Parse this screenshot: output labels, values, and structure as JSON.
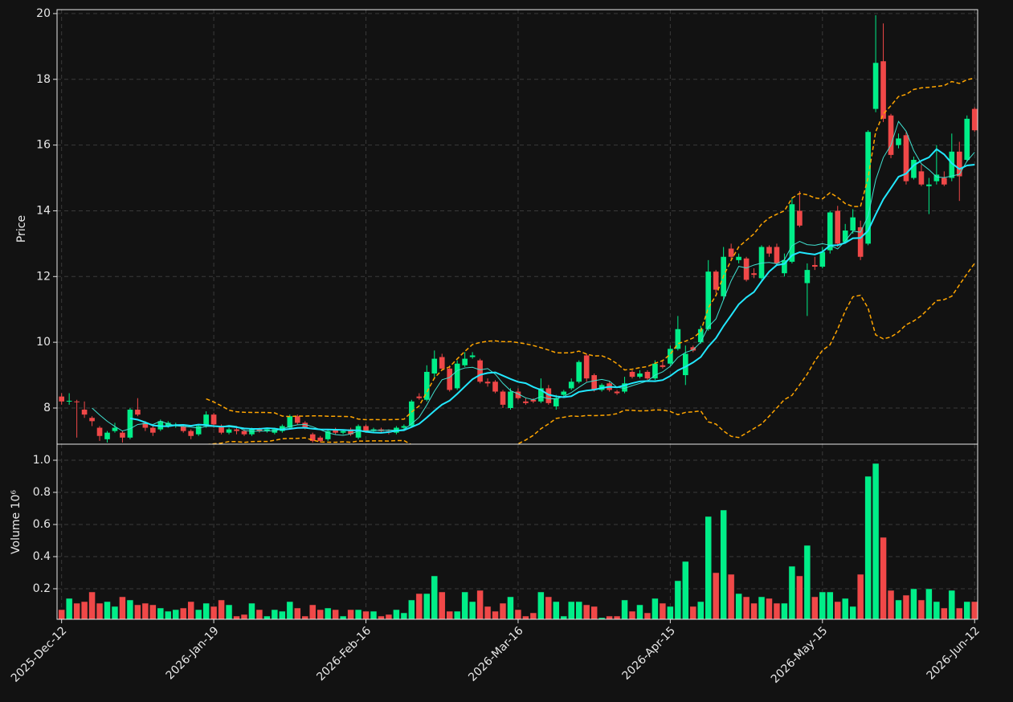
{
  "chart_data": {
    "type": "candlestick",
    "ylabel": "Price",
    "volume_label": "Volume  10⁶",
    "xlim": [
      -0.6,
      120.4
    ],
    "xticks": [
      {
        "value": 0,
        "label": "2025-Dec-12"
      },
      {
        "value": 20,
        "label": "2026-Jan-19"
      },
      {
        "value": 40,
        "label": "2026-Feb-16"
      },
      {
        "value": 60,
        "label": "2026-Mar-16"
      },
      {
        "value": 80,
        "label": "2026-Apr-15"
      },
      {
        "value": 100,
        "label": "2026-May-15"
      },
      {
        "value": 120,
        "label": "2026-Jun-12"
      }
    ],
    "ylim": [
      6.9,
      20.12
    ],
    "yticks": [
      8,
      10,
      12,
      14,
      16,
      18,
      20
    ],
    "volume_ylim": [
      0.01,
      1.1
    ],
    "volume_yticks": [
      0.2,
      0.4,
      0.6,
      0.8,
      {
        "value": 1,
        "label": "1.0"
      }
    ],
    "grid": true,
    "up_color": "#00ee88",
    "down_color": "#f04848",
    "mav": [
      {
        "period": 5,
        "color": "#40e0d0",
        "width": 1
      },
      {
        "period": 10,
        "color": "#22e8ff",
        "width": 2
      }
    ],
    "bollinger": {
      "period": 20,
      "std": 2,
      "color": "#ffa500"
    },
    "open": [
      8.35,
      8.2,
      8.2,
      7.95,
      7.7,
      7.4,
      7.05,
      7.3,
      7.25,
      7.1,
      7.95,
      7.55,
      7.4,
      7.35,
      7.45,
      7.45,
      7.45,
      7.3,
      7.2,
      7.45,
      7.8,
      7.45,
      7.25,
      7.35,
      7.3,
      7.2,
      7.35,
      7.3,
      7.25,
      7.3,
      7.4,
      7.75,
      7.55,
      7.2,
      7.1,
      7.05,
      7.35,
      7.25,
      7.35,
      7.1,
      7.45,
      7.3,
      7.35,
      7.3,
      7.25,
      7.4,
      7.45,
      8.35,
      8.25,
      9.05,
      9.55,
      9.2,
      8.6,
      9.3,
      9.55,
      9.45,
      8.8,
      8.8,
      8.5,
      8.0,
      8.5,
      8.2,
      8.25,
      8.2,
      8.6,
      8.05,
      8.4,
      8.6,
      8.8,
      9.6,
      9.0,
      8.55,
      8.75,
      8.5,
      8.5,
      9.1,
      8.95,
      9.1,
      8.9,
      9.3,
      9.35,
      9.8,
      9.0,
      9.85,
      10.0,
      10.4,
      12.15,
      11.4,
      12.85,
      12.5,
      12.55,
      12.1,
      11.95,
      12.9,
      12.9,
      12.1,
      12.45,
      14.0,
      11.8,
      12.35,
      12.3,
      12.8,
      14.0,
      13.05,
      13.4,
      13.5,
      13.0,
      17.1,
      18.55,
      16.9,
      16.0,
      16.3,
      15.0,
      15.2,
      14.75,
      14.9,
      15.0,
      15.0,
      15.8,
      15.55,
      17.1
    ],
    "high": [
      8.45,
      8.45,
      8.25,
      8.2,
      7.75,
      7.45,
      7.3,
      7.55,
      7.3,
      8.0,
      8.3,
      7.6,
      7.45,
      7.65,
      7.6,
      7.55,
      7.5,
      7.35,
      7.5,
      7.9,
      7.85,
      7.5,
      7.4,
      7.4,
      7.35,
      7.4,
      7.4,
      7.4,
      7.4,
      7.5,
      7.8,
      7.8,
      7.6,
      7.25,
      7.15,
      7.35,
      7.4,
      7.35,
      7.4,
      7.5,
      7.5,
      7.4,
      7.4,
      7.35,
      7.45,
      7.5,
      8.25,
      8.45,
      9.3,
      9.75,
      9.65,
      9.3,
      9.45,
      9.7,
      9.7,
      9.5,
      8.9,
      8.85,
      8.55,
      8.6,
      8.6,
      8.3,
      8.3,
      8.9,
      8.7,
      8.4,
      8.55,
      8.9,
      9.45,
      9.65,
      9.05,
      8.75,
      8.8,
      8.55,
      8.95,
      9.15,
      9.15,
      9.15,
      9.45,
      9.45,
      9.9,
      10.8,
      9.9,
      9.9,
      10.5,
      12.5,
      12.2,
      12.9,
      13.0,
      12.7,
      12.6,
      12.25,
      12.95,
      12.95,
      13.0,
      12.7,
      14.4,
      14.6,
      12.4,
      12.6,
      12.9,
      14.0,
      14.15,
      13.6,
      14.05,
      13.7,
      16.45,
      19.95,
      19.7,
      16.95,
      16.35,
      16.4,
      15.65,
      15.4,
      15.0,
      16.0,
      15.2,
      16.35,
      16.1,
      16.9,
      17.15
    ],
    "low": [
      8.1,
      8.1,
      7.1,
      7.7,
      7.45,
      7.0,
      6.95,
      7.25,
      6.95,
      7.05,
      7.75,
      7.3,
      7.15,
      7.3,
      7.4,
      7.4,
      7.25,
      7.05,
      7.15,
      7.4,
      7.4,
      7.2,
      7.2,
      7.2,
      7.15,
      7.15,
      7.25,
      7.25,
      7.2,
      7.25,
      7.35,
      7.5,
      7.35,
      6.95,
      6.95,
      7.0,
      7.2,
      7.2,
      7.15,
      7.05,
      7.25,
      7.25,
      7.25,
      7.2,
      7.2,
      7.35,
      7.4,
      8.25,
      8.2,
      8.9,
      9.15,
      8.5,
      8.55,
      9.25,
      9.5,
      8.75,
      8.65,
      8.45,
      8.0,
      7.95,
      8.25,
      8.1,
      8.15,
      8.15,
      8.1,
      7.95,
      8.35,
      8.55,
      8.75,
      8.8,
      8.5,
      8.5,
      8.5,
      8.4,
      8.45,
      8.9,
      8.9,
      8.85,
      8.85,
      9.2,
      9.3,
      9.75,
      8.7,
      9.7,
      9.95,
      10.35,
      11.5,
      11.3,
      12.5,
      12.4,
      11.85,
      11.95,
      11.9,
      12.6,
      12.35,
      12.0,
      12.4,
      13.5,
      10.8,
      12.2,
      12.25,
      12.7,
      12.9,
      13.0,
      13.3,
      12.5,
      12.95,
      17.0,
      16.7,
      15.6,
      15.9,
      14.8,
      14.95,
      14.75,
      13.9,
      14.8,
      14.75,
      14.9,
      14.3,
      15.5,
      16.4
    ],
    "close": [
      8.2,
      8.22,
      8.18,
      7.8,
      7.6,
      7.15,
      7.25,
      7.4,
      7.1,
      7.95,
      7.8,
      7.4,
      7.25,
      7.6,
      7.55,
      7.5,
      7.3,
      7.15,
      7.45,
      7.8,
      7.5,
      7.25,
      7.35,
      7.3,
      7.2,
      7.35,
      7.3,
      7.35,
      7.35,
      7.45,
      7.75,
      7.55,
      7.4,
      7.0,
      7.0,
      7.3,
      7.25,
      7.3,
      7.2,
      7.45,
      7.3,
      7.35,
      7.3,
      7.25,
      7.4,
      7.45,
      8.2,
      8.3,
      9.1,
      9.5,
      9.2,
      8.55,
      9.35,
      9.5,
      9.6,
      8.8,
      8.75,
      8.5,
      8.1,
      8.5,
      8.3,
      8.15,
      8.2,
      8.6,
      8.15,
      8.3,
      8.5,
      8.8,
      9.4,
      8.9,
      8.55,
      8.7,
      8.55,
      8.45,
      8.75,
      8.95,
      9.05,
      8.9,
      9.35,
      9.25,
      9.8,
      10.4,
      9.65,
      9.75,
      10.4,
      12.15,
      11.6,
      12.6,
      12.6,
      12.6,
      11.9,
      12.05,
      12.9,
      12.7,
      12.4,
      12.5,
      14.2,
      13.55,
      12.2,
      12.3,
      12.75,
      13.95,
      13.0,
      13.4,
      13.8,
      12.6,
      16.4,
      18.5,
      16.8,
      15.7,
      16.2,
      14.9,
      15.55,
      14.8,
      14.8,
      15.1,
      14.8,
      15.8,
      15.05,
      16.8,
      16.45
    ],
    "volume": [
      0.07,
      0.14,
      0.11,
      0.12,
      0.18,
      0.11,
      0.12,
      0.09,
      0.15,
      0.13,
      0.1,
      0.11,
      0.1,
      0.08,
      0.06,
      0.07,
      0.08,
      0.12,
      0.07,
      0.11,
      0.09,
      0.13,
      0.1,
      0.03,
      0.04,
      0.11,
      0.07,
      0.03,
      0.07,
      0.06,
      0.12,
      0.08,
      0.03,
      0.1,
      0.07,
      0.08,
      0.07,
      0.03,
      0.07,
      0.07,
      0.06,
      0.06,
      0.03,
      0.04,
      0.07,
      0.05,
      0.13,
      0.17,
      0.17,
      0.28,
      0.18,
      0.06,
      0.06,
      0.18,
      0.12,
      0.19,
      0.09,
      0.06,
      0.11,
      0.15,
      0.07,
      0.03,
      0.05,
      0.18,
      0.15,
      0.12,
      0.03,
      0.12,
      0.12,
      0.1,
      0.09,
      0.02,
      0.03,
      0.03,
      0.13,
      0.06,
      0.1,
      0.05,
      0.14,
      0.11,
      0.09,
      0.25,
      0.37,
      0.09,
      0.12,
      0.65,
      0.3,
      0.69,
      0.29,
      0.17,
      0.15,
      0.11,
      0.15,
      0.14,
      0.11,
      0.11,
      0.34,
      0.28,
      0.47,
      0.15,
      0.18,
      0.18,
      0.12,
      0.14,
      0.09,
      0.29,
      0.9,
      0.98,
      0.52,
      0.19,
      0.13,
      0.16,
      0.2,
      0.13,
      0.2,
      0.12,
      0.08,
      0.19,
      0.08,
      0.12,
      0.12
    ]
  }
}
